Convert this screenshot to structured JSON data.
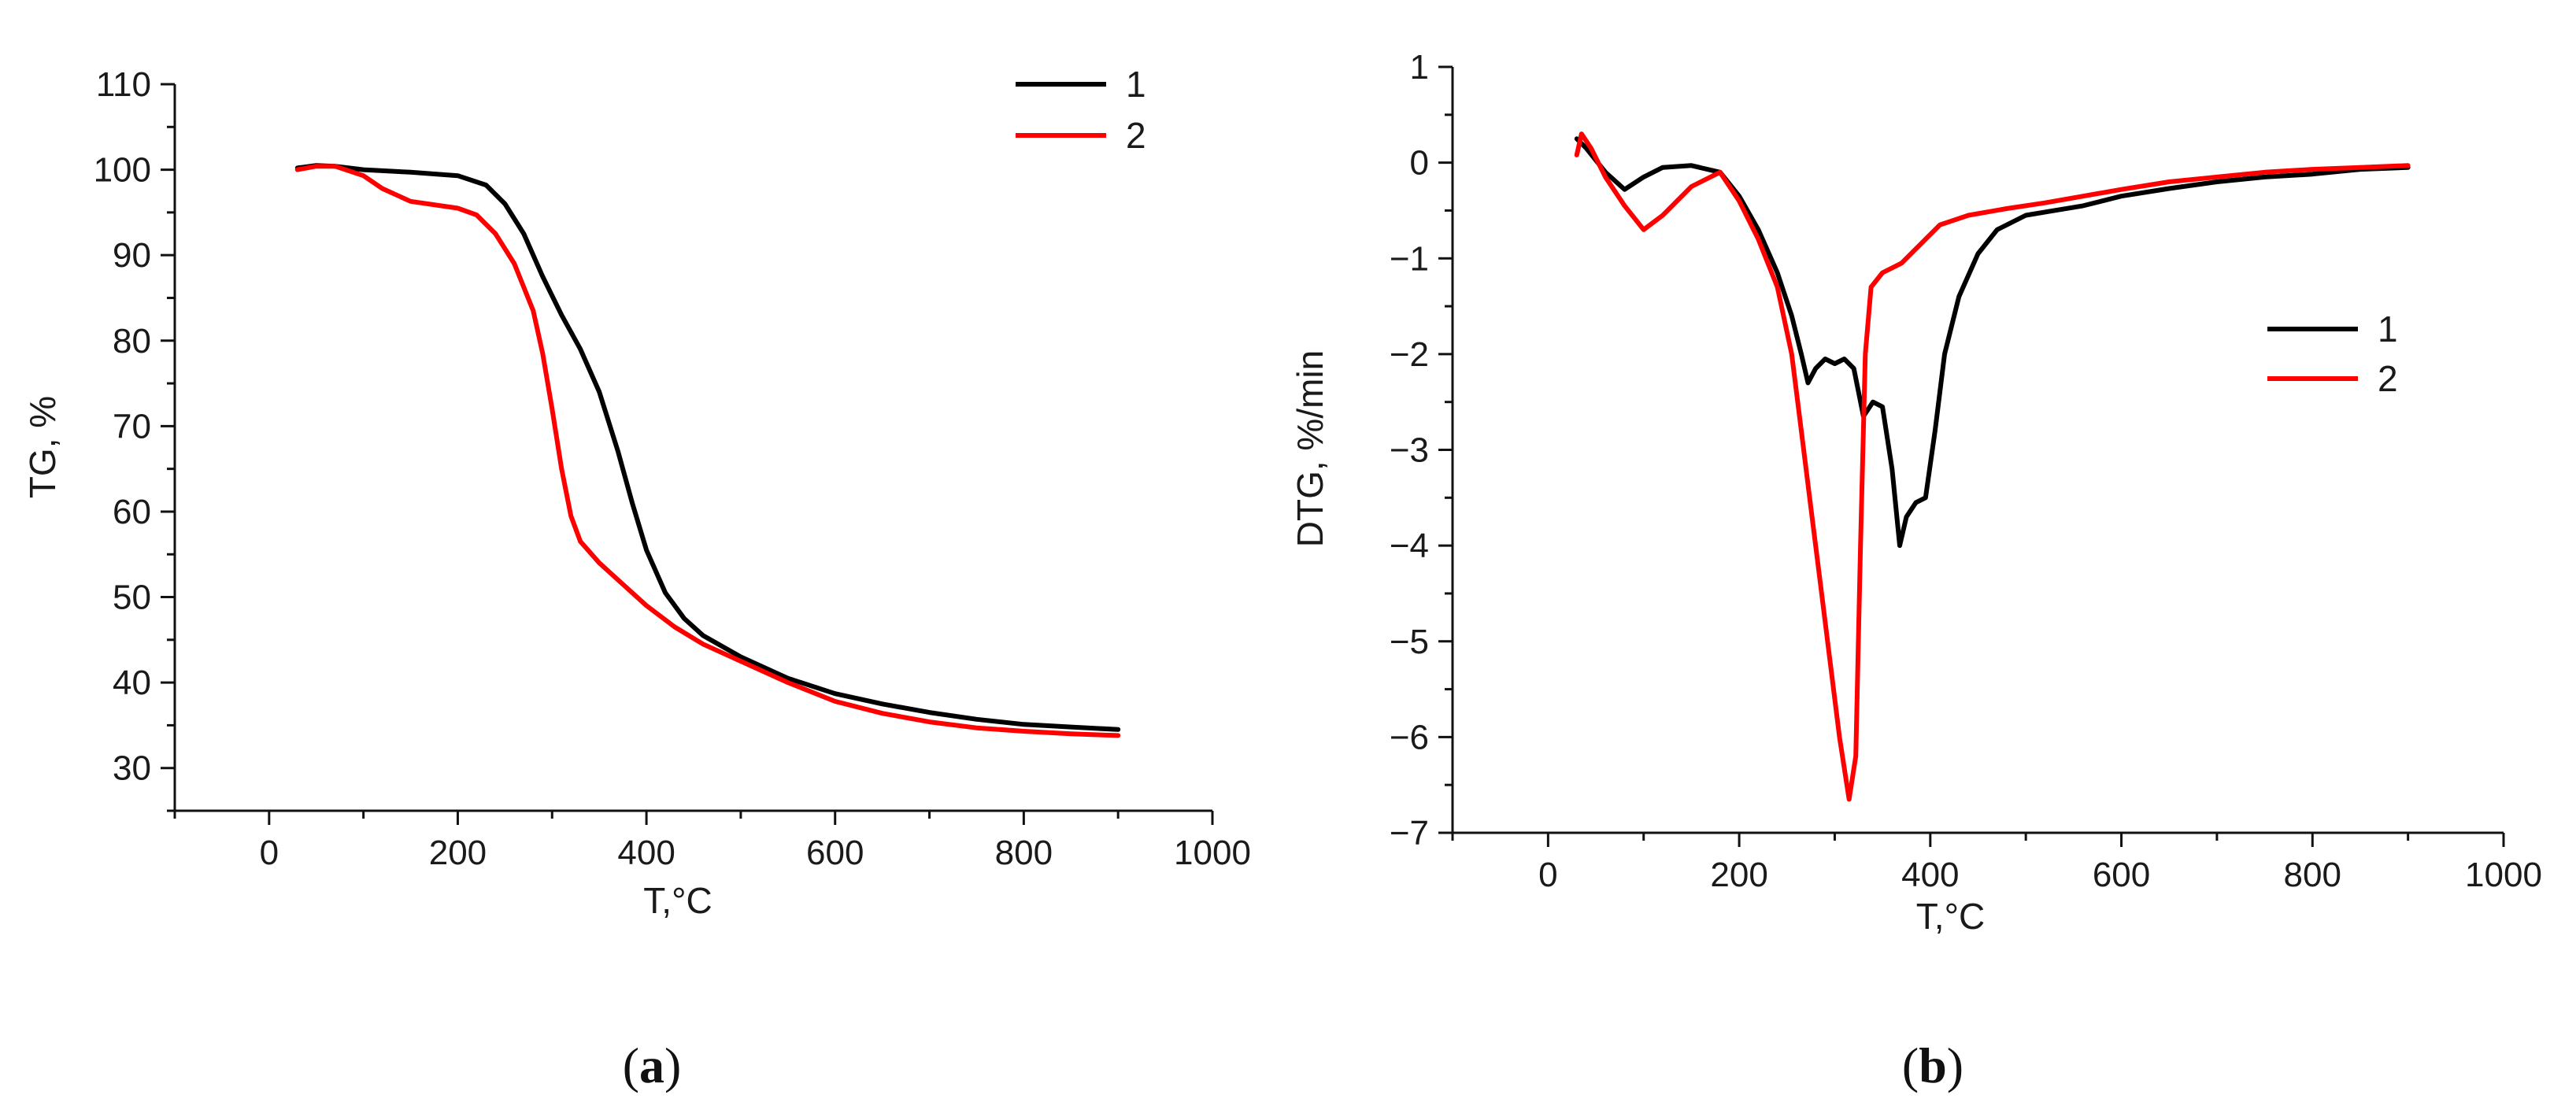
{
  "panels": [
    {
      "label_open": "(",
      "label_letter": "a",
      "label_close": ")"
    },
    {
      "label_open": "(",
      "label_letter": "b",
      "label_close": ")"
    }
  ],
  "chart_data": [
    {
      "type": "line",
      "panel": "a",
      "xlabel": "T,°C",
      "ylabel": "TG, %",
      "xlim": [
        -100,
        1000
      ],
      "ylim": [
        25,
        110
      ],
      "xticks": [
        0,
        200,
        400,
        600,
        800,
        1000
      ],
      "yticks": [
        30,
        40,
        50,
        60,
        70,
        80,
        90,
        100,
        110
      ],
      "legend_position": "top-right",
      "series": [
        {
          "name": "1",
          "color": "#000000",
          "points": [
            [
              30,
              100.2
            ],
            [
              50,
              100.5
            ],
            [
              70,
              100.4
            ],
            [
              100,
              100.0
            ],
            [
              150,
              99.7
            ],
            [
              200,
              99.3
            ],
            [
              230,
              98.2
            ],
            [
              250,
              96.0
            ],
            [
              270,
              92.5
            ],
            [
              290,
              87.5
            ],
            [
              310,
              83.0
            ],
            [
              330,
              79.0
            ],
            [
              350,
              74.0
            ],
            [
              370,
              67.0
            ],
            [
              385,
              61.0
            ],
            [
              400,
              55.5
            ],
            [
              420,
              50.5
            ],
            [
              440,
              47.5
            ],
            [
              460,
              45.5
            ],
            [
              500,
              43.0
            ],
            [
              550,
              40.5
            ],
            [
              600,
              38.7
            ],
            [
              650,
              37.5
            ],
            [
              700,
              36.5
            ],
            [
              750,
              35.7
            ],
            [
              800,
              35.1
            ],
            [
              850,
              34.8
            ],
            [
              900,
              34.5
            ]
          ]
        },
        {
          "name": "2",
          "color": "#ff0000",
          "points": [
            [
              30,
              100.0
            ],
            [
              50,
              100.4
            ],
            [
              70,
              100.4
            ],
            [
              100,
              99.3
            ],
            [
              120,
              97.8
            ],
            [
              150,
              96.3
            ],
            [
              200,
              95.5
            ],
            [
              220,
              94.7
            ],
            [
              240,
              92.5
            ],
            [
              260,
              89.0
            ],
            [
              280,
              83.5
            ],
            [
              290,
              78.5
            ],
            [
              300,
              72.0
            ],
            [
              310,
              65.0
            ],
            [
              320,
              59.5
            ],
            [
              330,
              56.5
            ],
            [
              350,
              54.0
            ],
            [
              370,
              52.0
            ],
            [
              400,
              49.0
            ],
            [
              430,
              46.5
            ],
            [
              460,
              44.5
            ],
            [
              500,
              42.5
            ],
            [
              550,
              40.0
            ],
            [
              600,
              37.8
            ],
            [
              650,
              36.4
            ],
            [
              700,
              35.4
            ],
            [
              750,
              34.7
            ],
            [
              800,
              34.3
            ],
            [
              850,
              34.0
            ],
            [
              900,
              33.8
            ]
          ]
        }
      ]
    },
    {
      "type": "line",
      "panel": "b",
      "xlabel": "T,°C",
      "ylabel": "DTG, %/min",
      "xlim": [
        -100,
        1000
      ],
      "ylim": [
        -7,
        1
      ],
      "xticks": [
        0,
        200,
        400,
        600,
        800,
        1000
      ],
      "yticks": [
        1,
        0,
        -1,
        -2,
        -3,
        -4,
        -5,
        -6,
        -7
      ],
      "legend_position": "center-right",
      "series": [
        {
          "name": "1",
          "color": "#000000",
          "points": [
            [
              30,
              0.25
            ],
            [
              40,
              0.15
            ],
            [
              60,
              -0.1
            ],
            [
              80,
              -0.28
            ],
            [
              100,
              -0.15
            ],
            [
              120,
              -0.05
            ],
            [
              150,
              -0.03
            ],
            [
              180,
              -0.1
            ],
            [
              200,
              -0.35
            ],
            [
              220,
              -0.7
            ],
            [
              240,
              -1.15
            ],
            [
              255,
              -1.6
            ],
            [
              265,
              -2.0
            ],
            [
              272,
              -2.3
            ],
            [
              280,
              -2.15
            ],
            [
              290,
              -2.05
            ],
            [
              300,
              -2.1
            ],
            [
              310,
              -2.05
            ],
            [
              320,
              -2.15
            ],
            [
              330,
              -2.65
            ],
            [
              340,
              -2.5
            ],
            [
              350,
              -2.55
            ],
            [
              360,
              -3.2
            ],
            [
              368,
              -4.0
            ],
            [
              375,
              -3.7
            ],
            [
              385,
              -3.55
            ],
            [
              395,
              -3.5
            ],
            [
              405,
              -2.8
            ],
            [
              415,
              -2.0
            ],
            [
              430,
              -1.4
            ],
            [
              450,
              -0.95
            ],
            [
              470,
              -0.7
            ],
            [
              500,
              -0.55
            ],
            [
              530,
              -0.5
            ],
            [
              560,
              -0.45
            ],
            [
              600,
              -0.35
            ],
            [
              650,
              -0.27
            ],
            [
              700,
              -0.2
            ],
            [
              750,
              -0.15
            ],
            [
              800,
              -0.12
            ],
            [
              850,
              -0.07
            ],
            [
              900,
              -0.05
            ]
          ]
        },
        {
          "name": "2",
          "color": "#ff0000",
          "points": [
            [
              30,
              0.08
            ],
            [
              35,
              0.3
            ],
            [
              45,
              0.15
            ],
            [
              60,
              -0.15
            ],
            [
              80,
              -0.45
            ],
            [
              100,
              -0.7
            ],
            [
              120,
              -0.55
            ],
            [
              150,
              -0.25
            ],
            [
              180,
              -0.1
            ],
            [
              200,
              -0.4
            ],
            [
              220,
              -0.8
            ],
            [
              240,
              -1.3
            ],
            [
              255,
              -2.0
            ],
            [
              265,
              -2.8
            ],
            [
              275,
              -3.6
            ],
            [
              285,
              -4.4
            ],
            [
              295,
              -5.2
            ],
            [
              305,
              -6.0
            ],
            [
              315,
              -6.65
            ],
            [
              322,
              -6.2
            ],
            [
              327,
              -4.0
            ],
            [
              332,
              -2.0
            ],
            [
              338,
              -1.3
            ],
            [
              350,
              -1.15
            ],
            [
              370,
              -1.05
            ],
            [
              390,
              -0.85
            ],
            [
              410,
              -0.65
            ],
            [
              440,
              -0.55
            ],
            [
              480,
              -0.48
            ],
            [
              520,
              -0.42
            ],
            [
              560,
              -0.35
            ],
            [
              600,
              -0.28
            ],
            [
              650,
              -0.2
            ],
            [
              700,
              -0.15
            ],
            [
              750,
              -0.1
            ],
            [
              800,
              -0.07
            ],
            [
              850,
              -0.05
            ],
            [
              900,
              -0.03
            ]
          ]
        }
      ]
    }
  ]
}
